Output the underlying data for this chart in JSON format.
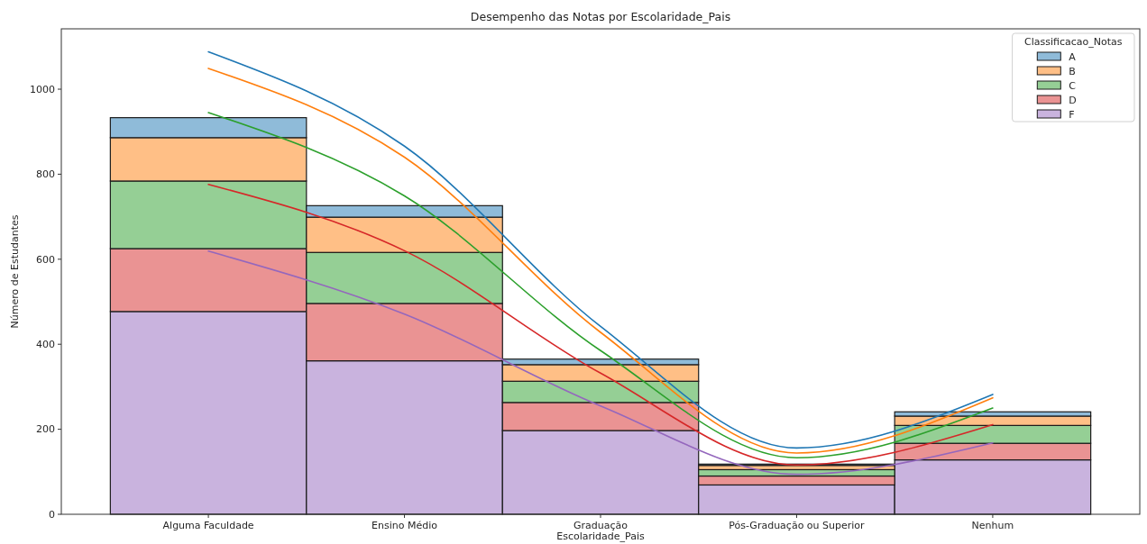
{
  "chart_data": {
    "type": "bar",
    "title": "Desempenho das Notas por Escolaridade_Pais",
    "xlabel": "Escolaridade_Pais",
    "ylabel": "Número de Estudantes",
    "legend_title": "Classificacao_Notas",
    "categories": [
      "Alguma Faculdade",
      "Ensino Médio",
      "Graduação",
      "Pós-Graduação ou Superior",
      "Nenhum"
    ],
    "ylim": [
      0,
      1142
    ],
    "yticks": [
      0,
      200,
      400,
      600,
      800,
      1000
    ],
    "stacked": true,
    "legend": "top right",
    "series": [
      {
        "name": "F",
        "color": "#c9b3de",
        "values": [
          477,
          361,
          197,
          69,
          128
        ]
      },
      {
        "name": "D",
        "color": "#ea9393",
        "values": [
          148,
          135,
          66,
          21,
          39
        ]
      },
      {
        "name": "C",
        "color": "#95cf95",
        "values": [
          159,
          120,
          50,
          15,
          42
        ]
      },
      {
        "name": "B",
        "color": "#ffbf86",
        "values": [
          102,
          83,
          39,
          10,
          22
        ]
      },
      {
        "name": "A",
        "color": "#8fbbd9",
        "values": [
          47,
          27,
          13,
          3,
          10
        ]
      },
      {
        "type": "line",
        "color": "#1f77b4",
        "values": [
          1088,
          866,
          442,
          156,
          282
        ]
      },
      {
        "type": "line",
        "color": "#ff7f0e",
        "values": [
          1049,
          840,
          428,
          144,
          274
        ]
      },
      {
        "type": "line",
        "color": "#2ca02c",
        "values": [
          945,
          749,
          385,
          133,
          250
        ]
      },
      {
        "type": "line",
        "color": "#d62728",
        "values": [
          776,
          620,
          332,
          116,
          211
        ]
      },
      {
        "type": "line",
        "color": "#9467bd",
        "values": [
          619,
          471,
          255,
          94,
          168
        ]
      }
    ]
  }
}
